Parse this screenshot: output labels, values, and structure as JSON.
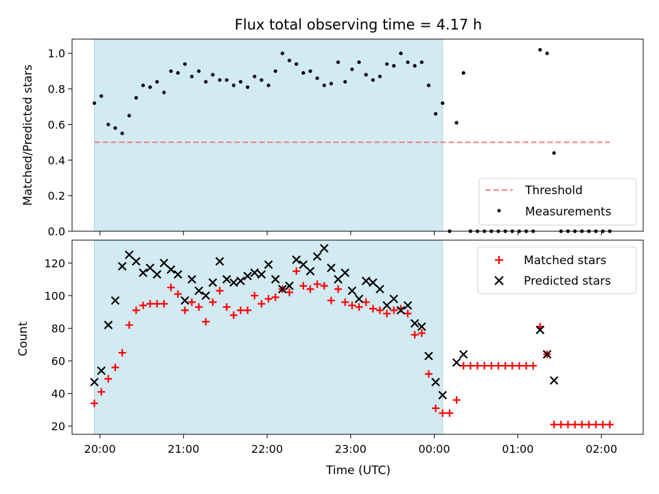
{
  "chart_data": [
    {
      "type": "scatter",
      "title": "Flux total observing time = 4.17 h",
      "xlabel": "",
      "ylabel": "Matched/Predicted stars",
      "xlim": [
        "19:40",
        "02:30"
      ],
      "ylim": [
        0,
        1.08
      ],
      "yticks": [
        "0.0",
        "0.2",
        "0.4",
        "0.6",
        "0.8",
        "1.0"
      ],
      "shaded_region": {
        "from": "19:56",
        "to": "00:06",
        "color": "#add8e6"
      },
      "threshold": {
        "name": "Threshold",
        "value": 0.5,
        "from": "19:56",
        "to": "02:06",
        "color": "#f08080"
      },
      "legend": {
        "position": "lower-right",
        "entries": [
          "Threshold",
          "Measurements"
        ]
      },
      "series": [
        {
          "name": "Measurements",
          "marker": "dot",
          "color": "#000000",
          "points": [
            [
              "19:56",
              0.72
            ],
            [
              "20:01",
              0.76
            ],
            [
              "20:06",
              0.6
            ],
            [
              "20:11",
              0.58
            ],
            [
              "20:16",
              0.55
            ],
            [
              "20:21",
              0.65
            ],
            [
              "20:26",
              0.75
            ],
            [
              "20:31",
              0.82
            ],
            [
              "20:36",
              0.81
            ],
            [
              "20:41",
              0.84
            ],
            [
              "20:46",
              0.78
            ],
            [
              "20:51",
              0.9
            ],
            [
              "20:56",
              0.89
            ],
            [
              "21:01",
              0.94
            ],
            [
              "21:06",
              0.87
            ],
            [
              "21:11",
              0.9
            ],
            [
              "21:16",
              0.84
            ],
            [
              "21:21",
              0.88
            ],
            [
              "21:26",
              0.85
            ],
            [
              "21:31",
              0.85
            ],
            [
              "21:36",
              0.82
            ],
            [
              "21:41",
              0.84
            ],
            [
              "21:46",
              0.81
            ],
            [
              "21:51",
              0.87
            ],
            [
              "21:56",
              0.85
            ],
            [
              "22:01",
              0.82
            ],
            [
              "22:06",
              0.9
            ],
            [
              "22:11",
              1.0
            ],
            [
              "22:16",
              0.96
            ],
            [
              "22:21",
              0.94
            ],
            [
              "22:26",
              0.89
            ],
            [
              "22:31",
              0.9
            ],
            [
              "22:36",
              0.86
            ],
            [
              "22:41",
              0.82
            ],
            [
              "22:46",
              0.83
            ],
            [
              "22:51",
              0.95
            ],
            [
              "22:56",
              0.84
            ],
            [
              "23:01",
              0.91
            ],
            [
              "23:06",
              0.95
            ],
            [
              "23:11",
              0.88
            ],
            [
              "23:16",
              0.85
            ],
            [
              "23:21",
              0.87
            ],
            [
              "23:26",
              0.94
            ],
            [
              "23:31",
              0.93
            ],
            [
              "23:36",
              1.0
            ],
            [
              "23:41",
              0.95
            ],
            [
              "23:46",
              0.93
            ],
            [
              "23:51",
              0.95
            ],
            [
              "23:56",
              0.82
            ],
            [
              "00:01",
              0.66
            ],
            [
              "00:06",
              0.72
            ],
            [
              "00:11",
              0.0
            ],
            [
              "00:16",
              0.61
            ],
            [
              "00:21",
              0.89
            ],
            [
              "00:26",
              0.0
            ],
            [
              "00:31",
              0.0
            ],
            [
              "00:36",
              0.0
            ],
            [
              "00:41",
              0.0
            ],
            [
              "00:46",
              0.0
            ],
            [
              "00:51",
              0.0
            ],
            [
              "00:56",
              0.0
            ],
            [
              "01:01",
              0.0
            ],
            [
              "01:06",
              0.0
            ],
            [
              "01:11",
              0.0
            ],
            [
              "01:16",
              1.02
            ],
            [
              "01:21",
              1.0
            ],
            [
              "01:26",
              0.44
            ],
            [
              "01:31",
              0.0
            ],
            [
              "01:36",
              0.0
            ],
            [
              "01:41",
              0.0
            ],
            [
              "01:46",
              0.0
            ],
            [
              "01:51",
              0.0
            ],
            [
              "01:56",
              0.0
            ],
            [
              "02:01",
              0.0
            ],
            [
              "02:06",
              0.0
            ]
          ]
        }
      ]
    },
    {
      "type": "scatter",
      "title": "",
      "xlabel": "Time (UTC)",
      "ylabel": "Count",
      "xlim": [
        "19:40",
        "02:30"
      ],
      "ylim": [
        15,
        134
      ],
      "xticks": [
        "20:00",
        "21:00",
        "22:00",
        "23:00",
        "00:00",
        "01:00",
        "02:00"
      ],
      "yticks": [
        "20",
        "40",
        "60",
        "80",
        "100",
        "120"
      ],
      "shaded_region": {
        "from": "19:56",
        "to": "00:06",
        "color": "#add8e6"
      },
      "legend": {
        "position": "top-right",
        "entries": [
          "Matched stars",
          "Predicted stars"
        ]
      },
      "series": [
        {
          "name": "Matched stars",
          "marker": "plus",
          "color": "#ff0000",
          "points": [
            [
              "19:56",
              34
            ],
            [
              "20:01",
              41
            ],
            [
              "20:06",
              49
            ],
            [
              "20:11",
              56
            ],
            [
              "20:16",
              65
            ],
            [
              "20:21",
              82
            ],
            [
              "20:26",
              91
            ],
            [
              "20:31",
              94
            ],
            [
              "20:36",
              95
            ],
            [
              "20:41",
              95
            ],
            [
              "20:46",
              95
            ],
            [
              "20:51",
              105
            ],
            [
              "20:56",
              101
            ],
            [
              "21:01",
              91
            ],
            [
              "21:06",
              96
            ],
            [
              "21:11",
              93
            ],
            [
              "21:16",
              84
            ],
            [
              "21:21",
              96
            ],
            [
              "21:26",
              103
            ],
            [
              "21:31",
              93
            ],
            [
              "21:36",
              88
            ],
            [
              "21:41",
              91
            ],
            [
              "21:46",
              91
            ],
            [
              "21:51",
              100
            ],
            [
              "21:56",
              95
            ],
            [
              "22:01",
              98
            ],
            [
              "22:06",
              99
            ],
            [
              "22:11",
              104
            ],
            [
              "22:16",
              102
            ],
            [
              "22:21",
              115
            ],
            [
              "22:26",
              106
            ],
            [
              "22:31",
              104
            ],
            [
              "22:36",
              107
            ],
            [
              "22:41",
              106
            ],
            [
              "22:46",
              97
            ],
            [
              "22:51",
              104
            ],
            [
              "22:56",
              96
            ],
            [
              "23:01",
              94
            ],
            [
              "23:06",
              93
            ],
            [
              "23:11",
              96
            ],
            [
              "23:16",
              92
            ],
            [
              "23:21",
              91
            ],
            [
              "23:26",
              89
            ],
            [
              "23:31",
              91
            ],
            [
              "23:36",
              92
            ],
            [
              "23:41",
              89
            ],
            [
              "23:46",
              76
            ],
            [
              "23:51",
              77
            ],
            [
              "23:56",
              52
            ],
            [
              "00:01",
              31
            ],
            [
              "00:06",
              28
            ],
            [
              "00:11",
              28
            ],
            [
              "00:16",
              36
            ],
            [
              "00:21",
              57
            ],
            [
              "00:26",
              57
            ],
            [
              "00:31",
              57
            ],
            [
              "00:36",
              57
            ],
            [
              "00:41",
              57
            ],
            [
              "00:46",
              57
            ],
            [
              "00:51",
              57
            ],
            [
              "00:56",
              57
            ],
            [
              "01:01",
              57
            ],
            [
              "01:06",
              57
            ],
            [
              "01:11",
              57
            ],
            [
              "01:16",
              81
            ],
            [
              "01:21",
              64
            ],
            [
              "01:26",
              21
            ],
            [
              "01:31",
              21
            ],
            [
              "01:36",
              21
            ],
            [
              "01:41",
              21
            ],
            [
              "01:46",
              21
            ],
            [
              "01:51",
              21
            ],
            [
              "01:56",
              21
            ],
            [
              "02:01",
              21
            ],
            [
              "02:06",
              21
            ]
          ]
        },
        {
          "name": "Predicted stars",
          "marker": "x",
          "color": "#000000",
          "points": [
            [
              "19:56",
              47
            ],
            [
              "20:01",
              54
            ],
            [
              "20:06",
              82
            ],
            [
              "20:11",
              97
            ],
            [
              "20:16",
              118
            ],
            [
              "20:21",
              125
            ],
            [
              "20:26",
              121
            ],
            [
              "20:31",
              114
            ],
            [
              "20:36",
              117
            ],
            [
              "20:41",
              113
            ],
            [
              "20:46",
              120
            ],
            [
              "20:51",
              116
            ],
            [
              "20:56",
              113
            ],
            [
              "21:01",
              97
            ],
            [
              "21:06",
              110
            ],
            [
              "21:11",
              103
            ],
            [
              "21:16",
              100
            ],
            [
              "21:21",
              108
            ],
            [
              "21:26",
              121
            ],
            [
              "21:31",
              110
            ],
            [
              "21:36",
              108
            ],
            [
              "21:41",
              109
            ],
            [
              "21:46",
              112
            ],
            [
              "21:51",
              114
            ],
            [
              "21:56",
              113
            ],
            [
              "22:01",
              119
            ],
            [
              "22:06",
              110
            ],
            [
              "22:11",
              104
            ],
            [
              "22:16",
              106
            ],
            [
              "22:21",
              122
            ],
            [
              "22:26",
              119
            ],
            [
              "22:31",
              115
            ],
            [
              "22:36",
              124
            ],
            [
              "22:41",
              129
            ],
            [
              "22:46",
              117
            ],
            [
              "22:51",
              110
            ],
            [
              "22:56",
              114
            ],
            [
              "23:01",
              103
            ],
            [
              "23:06",
              98
            ],
            [
              "23:11",
              109
            ],
            [
              "23:16",
              108
            ],
            [
              "23:21",
              104
            ],
            [
              "23:26",
              94
            ],
            [
              "23:31",
              98
            ],
            [
              "23:36",
              91
            ],
            [
              "23:41",
              94
            ],
            [
              "23:46",
              83
            ],
            [
              "23:51",
              81
            ],
            [
              "23:56",
              63
            ],
            [
              "00:01",
              47
            ],
            [
              "00:06",
              39
            ],
            [
              "00:16",
              59
            ],
            [
              "00:21",
              64
            ],
            [
              "01:16",
              79
            ],
            [
              "01:21",
              64
            ],
            [
              "01:26",
              48
            ]
          ]
        }
      ]
    }
  ]
}
